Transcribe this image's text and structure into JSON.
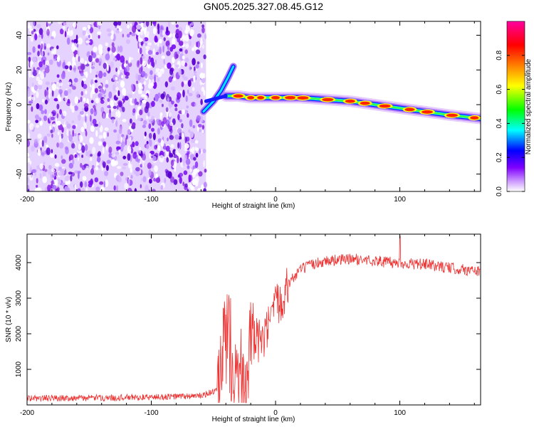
{
  "figure_title": "GN05.2025.327.08.45.G12",
  "chart_data": [
    {
      "type": "heatmap",
      "title": "GN05.2025.327.08.45.G12",
      "xlabel": "Height of straight line (km)",
      "ylabel": "Frequency (Hz)",
      "xlim": [
        -200,
        165
      ],
      "ylim": [
        -50,
        48
      ],
      "x_ticks": [
        -200,
        -100,
        0,
        100
      ],
      "y_ticks": [
        -40,
        -20,
        0,
        20,
        40
      ],
      "x_tick_labels": [
        "-200",
        "-100",
        "0",
        "100"
      ],
      "y_tick_labels": [
        "-40",
        "-20",
        "0",
        "20",
        "40"
      ],
      "noise_region_x": [
        -200,
        -56
      ],
      "ridge": {
        "x": [
          -40,
          -30,
          -20,
          -10,
          0,
          20,
          40,
          60,
          80,
          100,
          120,
          140,
          165
        ],
        "freq_hz": [
          5,
          5,
          4,
          4,
          4,
          4,
          3,
          2,
          0,
          -2,
          -4,
          -6,
          -8
        ]
      },
      "branch": {
        "x": [
          -58,
          -50,
          -44,
          -38,
          -34
        ],
        "freq_hz": [
          -4,
          2,
          8,
          16,
          22
        ]
      },
      "colorbar": {
        "label": "Normalized spectral amplitude",
        "range": [
          0,
          1
        ],
        "ticks": [
          0.0,
          0.2,
          0.4,
          0.6,
          0.8
        ],
        "tick_labels": [
          "0.0",
          "0.2",
          "0.4",
          "0.6",
          "0.8"
        ],
        "colors": [
          "#ffffff",
          "#cc99ff",
          "#8000ff",
          "#0000ff",
          "#00ffff",
          "#00ff00",
          "#ffff00",
          "#ff8000",
          "#ff0000",
          "#ff00a0"
        ]
      }
    },
    {
      "type": "line",
      "xlabel": "Height of straight line (km)",
      "ylabel": "SNR (10 * v/v)",
      "xlim": [
        -200,
        165
      ],
      "ylim": [
        0,
        4800
      ],
      "x_ticks": [
        -200,
        -100,
        0,
        100
      ],
      "y_ticks": [
        1000,
        2000,
        3000,
        4000
      ],
      "x_tick_labels": [
        "-200",
        "-100",
        "0",
        "100"
      ],
      "y_tick_labels": [
        "1000",
        "2000",
        "3000",
        "4000"
      ],
      "series": [
        {
          "name": "SNR",
          "color": "#ee3333",
          "x": [
            -200,
            -150,
            -100,
            -60,
            -45,
            -40,
            -35,
            -30,
            -25,
            -20,
            -15,
            -10,
            -5,
            0,
            10,
            20,
            30,
            40,
            60,
            80,
            100,
            120,
            140,
            165
          ],
          "y": [
            150,
            160,
            180,
            220,
            400,
            2000,
            1500,
            1000,
            900,
            1600,
            1900,
            1800,
            2300,
            2800,
            3400,
            3800,
            3950,
            4050,
            4100,
            4050,
            3980,
            3950,
            3850,
            3750
          ]
        }
      ]
    }
  ]
}
